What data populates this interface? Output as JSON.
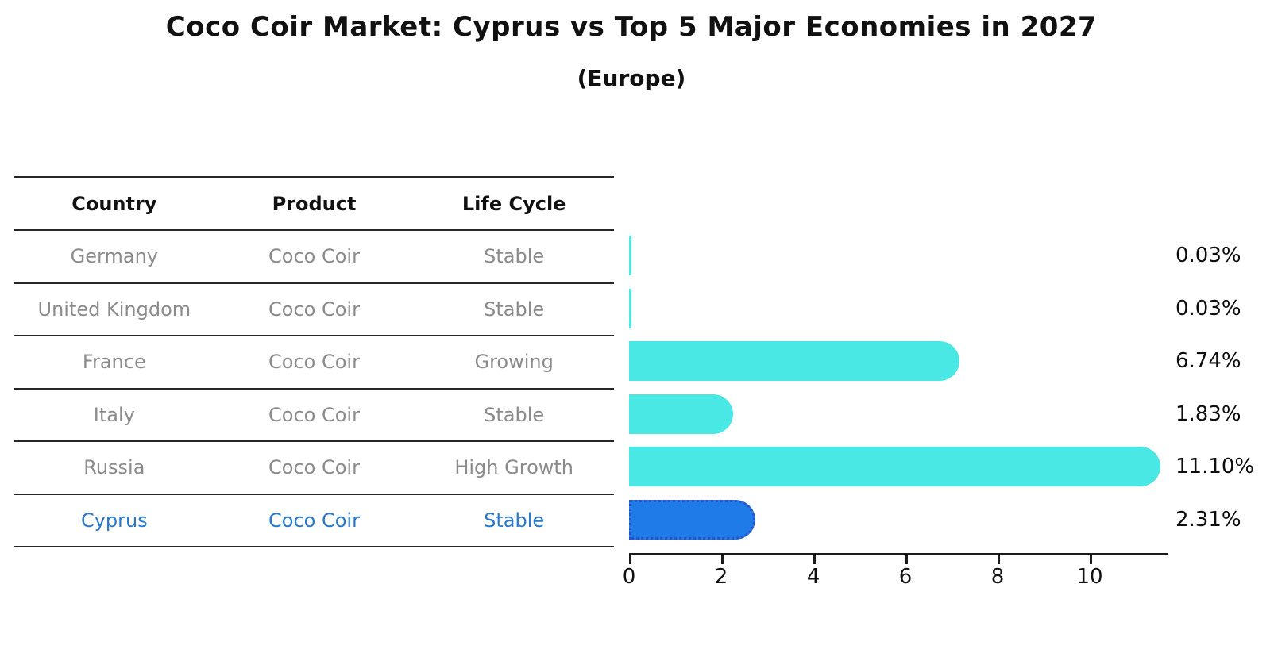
{
  "title": "Coco Coir Market: Cyprus vs Top 5 Major Economies in 2027",
  "subtitle": "(Europe)",
  "table": {
    "headers": [
      "Country",
      "Product",
      "Life Cycle"
    ],
    "rows": [
      {
        "country": "Germany",
        "product": "Coco Coir",
        "life_cycle": "Stable",
        "highlight": false
      },
      {
        "country": "United Kingdom",
        "product": "Coco Coir",
        "life_cycle": "Stable",
        "highlight": false
      },
      {
        "country": "France",
        "product": "Coco Coir",
        "life_cycle": "Growing",
        "highlight": false
      },
      {
        "country": "Italy",
        "product": "Coco Coir",
        "life_cycle": "Stable",
        "highlight": false
      },
      {
        "country": "Russia",
        "product": "Coco Coir",
        "life_cycle": "High Growth",
        "highlight": false
      },
      {
        "country": "Cyprus",
        "product": "Coco Coir",
        "life_cycle": "Stable",
        "highlight": true
      }
    ]
  },
  "chart_data": {
    "type": "bar",
    "orientation": "horizontal",
    "title": "Coco Coir Market: Cyprus vs Top 5 Major Economies in 2027",
    "subtitle": "(Europe)",
    "categories": [
      "Germany",
      "United Kingdom",
      "France",
      "Italy",
      "Russia",
      "Cyprus"
    ],
    "values": [
      0.03,
      0.03,
      6.74,
      1.83,
      11.1,
      2.31
    ],
    "value_labels": [
      "0.03%",
      "0.03%",
      "6.74%",
      "1.83%",
      "11.10%",
      "2.31%"
    ],
    "highlight_index": 5,
    "x_ticks": [
      0,
      2,
      4,
      6,
      8,
      10
    ],
    "xlim": [
      0,
      11.7
    ],
    "xlabel": "",
    "ylabel": "",
    "grid": false,
    "legend": "none",
    "bar_color": "#4ae8e4",
    "highlight_bar_color": "#1e7be8",
    "highlight_bar_border_color": "#2b52c4",
    "highlight_text_color": "#2878cc",
    "text_color": "#8b8b8b"
  }
}
